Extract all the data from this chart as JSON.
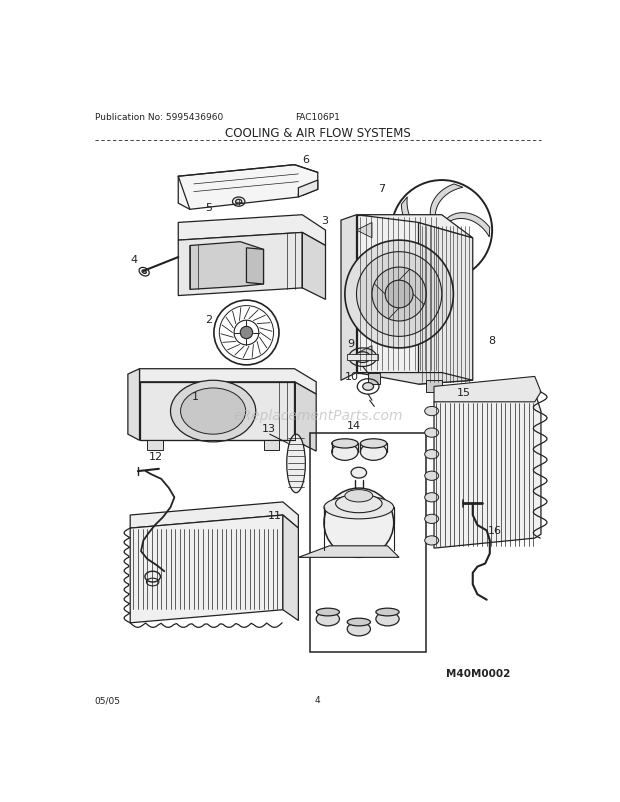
{
  "title": "COOLING & AIR FLOW SYSTEMS",
  "pub_no": "Publication No: 5995436960",
  "model": "FAC106P1",
  "date": "05/05",
  "page": "4",
  "watermark": "eReplacementParts.com",
  "diagram_id": "M40M0002",
  "bg_color": "#ffffff",
  "lc": "#222222",
  "figsize": [
    6.2,
    8.03
  ],
  "dpi": 100
}
